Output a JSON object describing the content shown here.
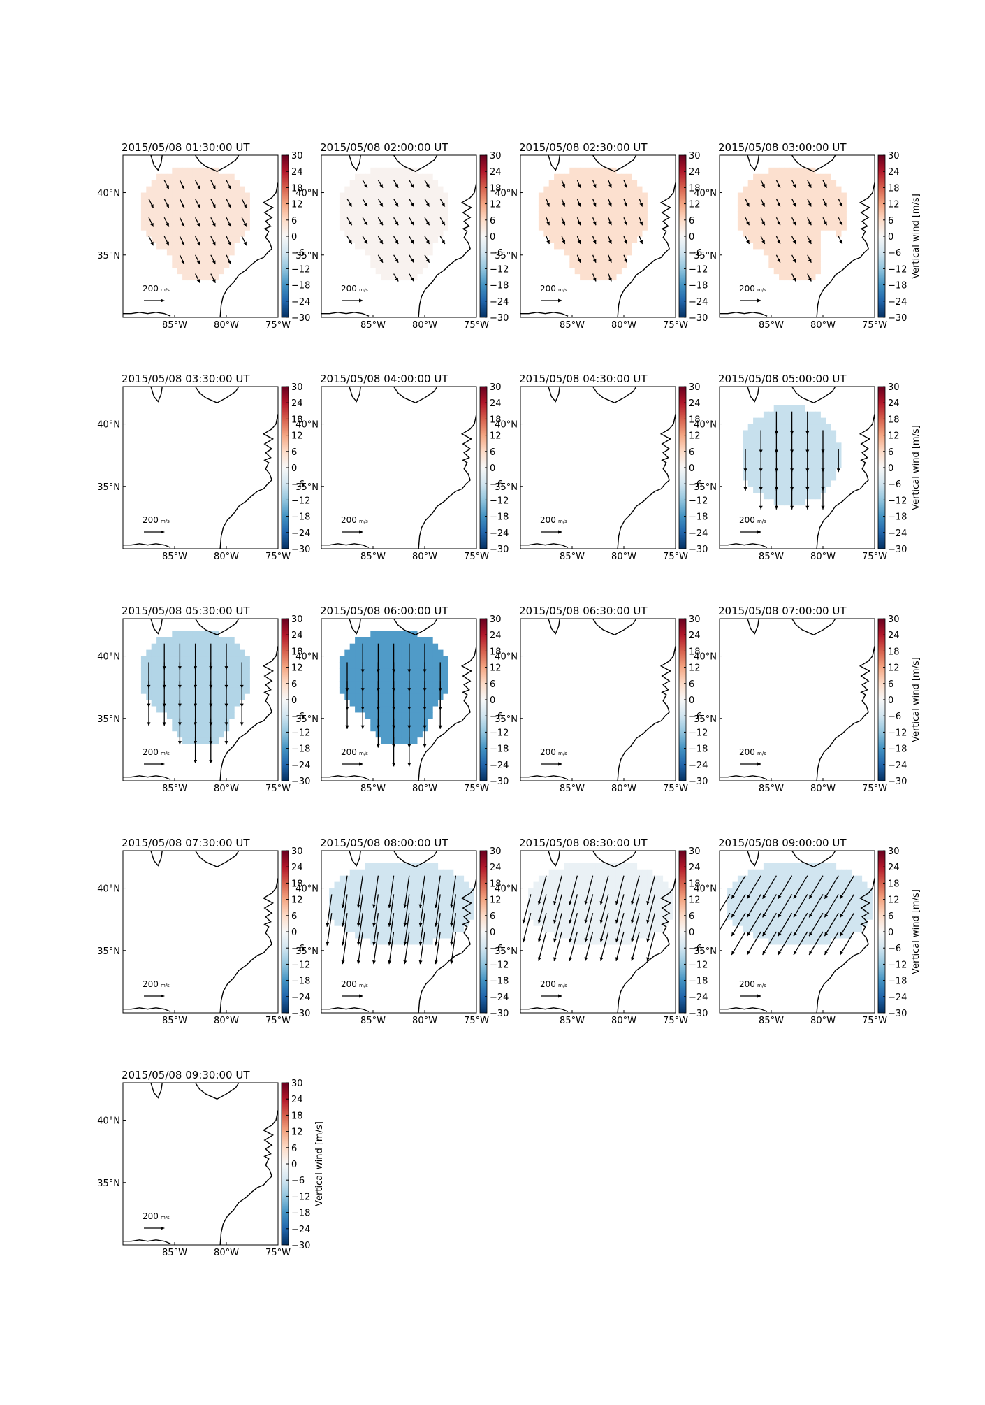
{
  "chart_data": {
    "type": "heatmap",
    "description_units": "Vertical wind [m/s]",
    "colorbar": {
      "label": "Vertical wind [m/s]",
      "range": [
        -30,
        30
      ],
      "ticks": [
        "30",
        "24",
        "18",
        "12",
        "6",
        "0",
        "−6",
        "−12",
        "−18",
        "−24",
        "−30"
      ],
      "colormap": "RdBu_r",
      "stops": [
        "#053061",
        "#2166ac",
        "#4393c3",
        "#92c5de",
        "#d1e5f0",
        "#f7f7f7",
        "#fddbc7",
        "#f4a582",
        "#d6604d",
        "#b2182b",
        "#67001f"
      ]
    },
    "lon_range": [
      -90,
      -75
    ],
    "lat_range": [
      30,
      43
    ],
    "x_ticks": [
      "85°W",
      "80°W",
      "75°W"
    ],
    "y_ticks": [
      "40°N",
      "35°N"
    ],
    "reference_vector_label": "200",
    "reference_vector_unit": "m/s",
    "panels": [
      {
        "title": "2015/05/08 01:30:00 UT",
        "vertical_wind": 4,
        "arrow_u": 30,
        "arrow_v": -60,
        "coverage": "full",
        "show_cbar_label": false
      },
      {
        "title": "2015/05/08 02:00:00 UT",
        "vertical_wind": 1,
        "arrow_u": 30,
        "arrow_v": -50,
        "coverage": "full",
        "show_cbar_label": false
      },
      {
        "title": "2015/05/08 02:30:00 UT",
        "vertical_wind": 5,
        "arrow_u": 20,
        "arrow_v": -50,
        "coverage": "full",
        "show_cbar_label": false
      },
      {
        "title": "2015/05/08 03:00:00 UT",
        "vertical_wind": 5,
        "arrow_u": 25,
        "arrow_v": -50,
        "coverage": "notch",
        "show_cbar_label": true
      },
      {
        "title": "2015/05/08 03:30:00 UT",
        "vertical_wind": null,
        "coverage": "none",
        "show_cbar_label": false
      },
      {
        "title": "2015/05/08 04:00:00 UT",
        "vertical_wind": null,
        "coverage": "none",
        "show_cbar_label": false
      },
      {
        "title": "2015/05/08 04:30:00 UT",
        "vertical_wind": null,
        "coverage": "none",
        "show_cbar_label": false
      },
      {
        "title": "2015/05/08 05:00:00 UT",
        "vertical_wind": -7,
        "arrow_u": 0,
        "arrow_v": -150,
        "coverage": "compact",
        "show_cbar_label": true
      },
      {
        "title": "2015/05/08 05:30:00 UT",
        "vertical_wind": -9,
        "arrow_u": 0,
        "arrow_v": -170,
        "coverage": "full",
        "show_cbar_label": false
      },
      {
        "title": "2015/05/08 06:00:00 UT",
        "vertical_wind": -17,
        "arrow_u": 0,
        "arrow_v": -190,
        "coverage": "full",
        "show_cbar_label": false
      },
      {
        "title": "2015/05/08 06:30:00 UT",
        "vertical_wind": null,
        "coverage": "none",
        "show_cbar_label": false
      },
      {
        "title": "2015/05/08 07:00:00 UT",
        "vertical_wind": null,
        "coverage": "none",
        "show_cbar_label": true
      },
      {
        "title": "2015/05/08 07:30:00 UT",
        "vertical_wind": null,
        "coverage": "none",
        "show_cbar_label": false
      },
      {
        "title": "2015/05/08 08:00:00 UT",
        "vertical_wind": -6,
        "arrow_u": -30,
        "arrow_v": -210,
        "coverage": "wide",
        "show_cbar_label": false
      },
      {
        "title": "2015/05/08 08:30:00 UT",
        "vertical_wind": -2,
        "arrow_u": -50,
        "arrow_v": -190,
        "coverage": "wide",
        "show_cbar_label": false
      },
      {
        "title": "2015/05/08 09:00:00 UT",
        "vertical_wind": -6,
        "arrow_u": -90,
        "arrow_v": -150,
        "coverage": "wide",
        "show_cbar_label": true
      },
      {
        "title": "2015/05/08 09:30:00 UT",
        "vertical_wind": null,
        "coverage": "none",
        "show_cbar_label": true
      }
    ]
  }
}
